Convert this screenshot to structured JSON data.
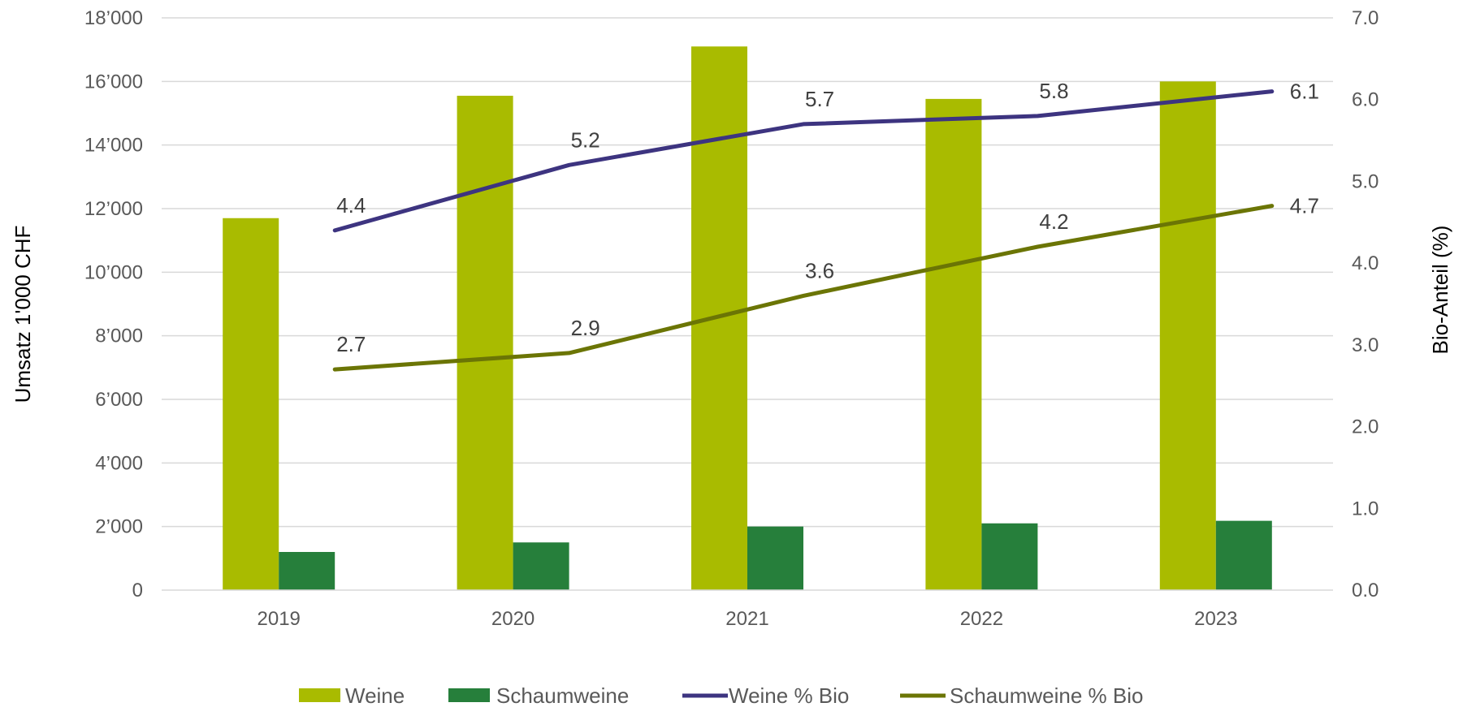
{
  "chart_data": {
    "type": "bar",
    "categories": [
      "2019",
      "2020",
      "2021",
      "2022",
      "2023"
    ],
    "series": [
      {
        "name": "Weine",
        "kind": "bar",
        "axis": "left",
        "color": "#a9bb00",
        "values": [
          11700,
          15550,
          17100,
          15450,
          16000
        ]
      },
      {
        "name": "Schaumweine",
        "kind": "bar",
        "axis": "left",
        "color": "#267f3b",
        "values": [
          1200,
          1500,
          2000,
          2100,
          2180
        ]
      },
      {
        "name": "Weine % Bio",
        "kind": "line",
        "axis": "right",
        "color": "#3d3480",
        "values": [
          4.4,
          5.2,
          5.7,
          5.8,
          6.1
        ],
        "labels": [
          "4.4",
          "5.2",
          "5.7",
          "5.8",
          "6.1"
        ]
      },
      {
        "name": "Schaumweine % Bio",
        "kind": "line",
        "axis": "right",
        "color": "#6b7505",
        "values": [
          2.7,
          2.9,
          3.6,
          4.2,
          4.7
        ],
        "labels": [
          "2.7",
          "2.9",
          "3.6",
          "4.2",
          "4.7"
        ]
      }
    ],
    "ylabel": "Umsatz 1'000 CHF",
    "y2label": "Bio-Anteil (%)",
    "ylim": [
      0,
      18000
    ],
    "y2lim": [
      0,
      7
    ],
    "yticks": [
      "0",
      "2’000",
      "4’000",
      "6’000",
      "8’000",
      "10’000",
      "12’000",
      "14’000",
      "16’000",
      "18’000"
    ],
    "y2ticks": [
      "0.0",
      "1.0",
      "2.0",
      "3.0",
      "4.0",
      "5.0",
      "6.0",
      "7.0"
    ],
    "grid": true,
    "legend_position": "bottom"
  }
}
